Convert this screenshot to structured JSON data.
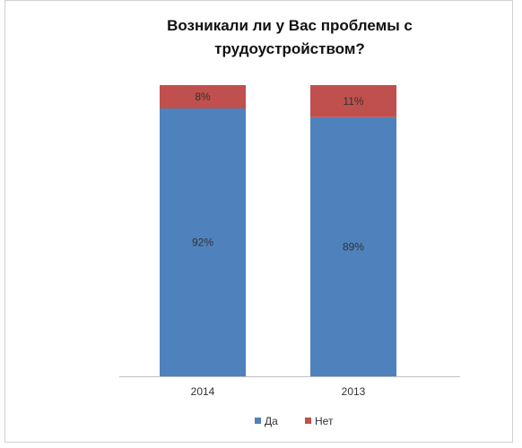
{
  "chart_data": {
    "type": "bar",
    "stacked": true,
    "percent": true,
    "title": [
      "Возникали ли у Вас проблемы с",
      "трудоустройством?"
    ],
    "categories": [
      "2014",
      "2013"
    ],
    "series": [
      {
        "name": "Да",
        "values": [
          92,
          89
        ],
        "labels": [
          "92%",
          "89%"
        ],
        "color": "#4f81bd"
      },
      {
        "name": "Нет",
        "values": [
          8,
          11
        ],
        "labels": [
          "8%",
          "11%"
        ],
        "color": "#c0504d"
      }
    ],
    "ylim": [
      0,
      100
    ],
    "grid": false,
    "legend": "bottom"
  }
}
